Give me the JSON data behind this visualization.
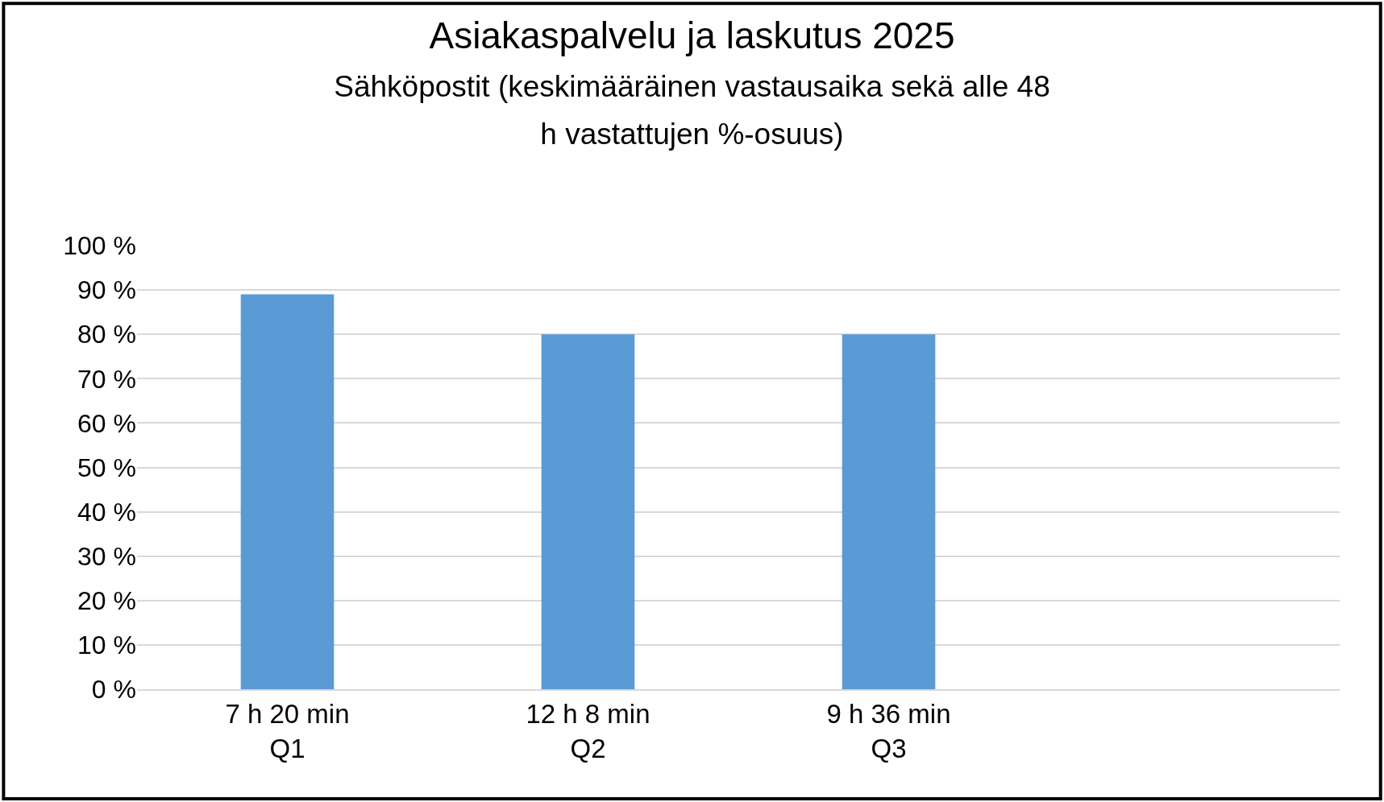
{
  "chart_data": {
    "type": "bar",
    "title": "Asiakaspalvelu ja laskutus 2025",
    "subtitle": "Sähköpostit (keskimääräinen vastausaika sekä alle 48 h vastattujen %-osuus)",
    "categories": [
      "7 h 20 min\nQ1",
      "12 h 8 min\nQ2",
      "9 h 36 min\nQ3",
      null
    ],
    "values": [
      89,
      80,
      80,
      null
    ],
    "color": "#5b9bd5",
    "ylim": [
      0,
      100
    ],
    "yticks": [
      {
        "value": 0,
        "label": "0 %"
      },
      {
        "value": 10,
        "label": "10 %"
      },
      {
        "value": 20,
        "label": "20 %"
      },
      {
        "value": 30,
        "label": "30 %"
      },
      {
        "value": 40,
        "label": "40 %"
      },
      {
        "value": 50,
        "label": "50 %"
      },
      {
        "value": 60,
        "label": "60 %"
      },
      {
        "value": 70,
        "label": "70 %"
      },
      {
        "value": 80,
        "label": "80 %"
      },
      {
        "value": 90,
        "label": "90 %"
      },
      {
        "value": 100,
        "label": "100 %"
      }
    ],
    "grid": "y"
  }
}
